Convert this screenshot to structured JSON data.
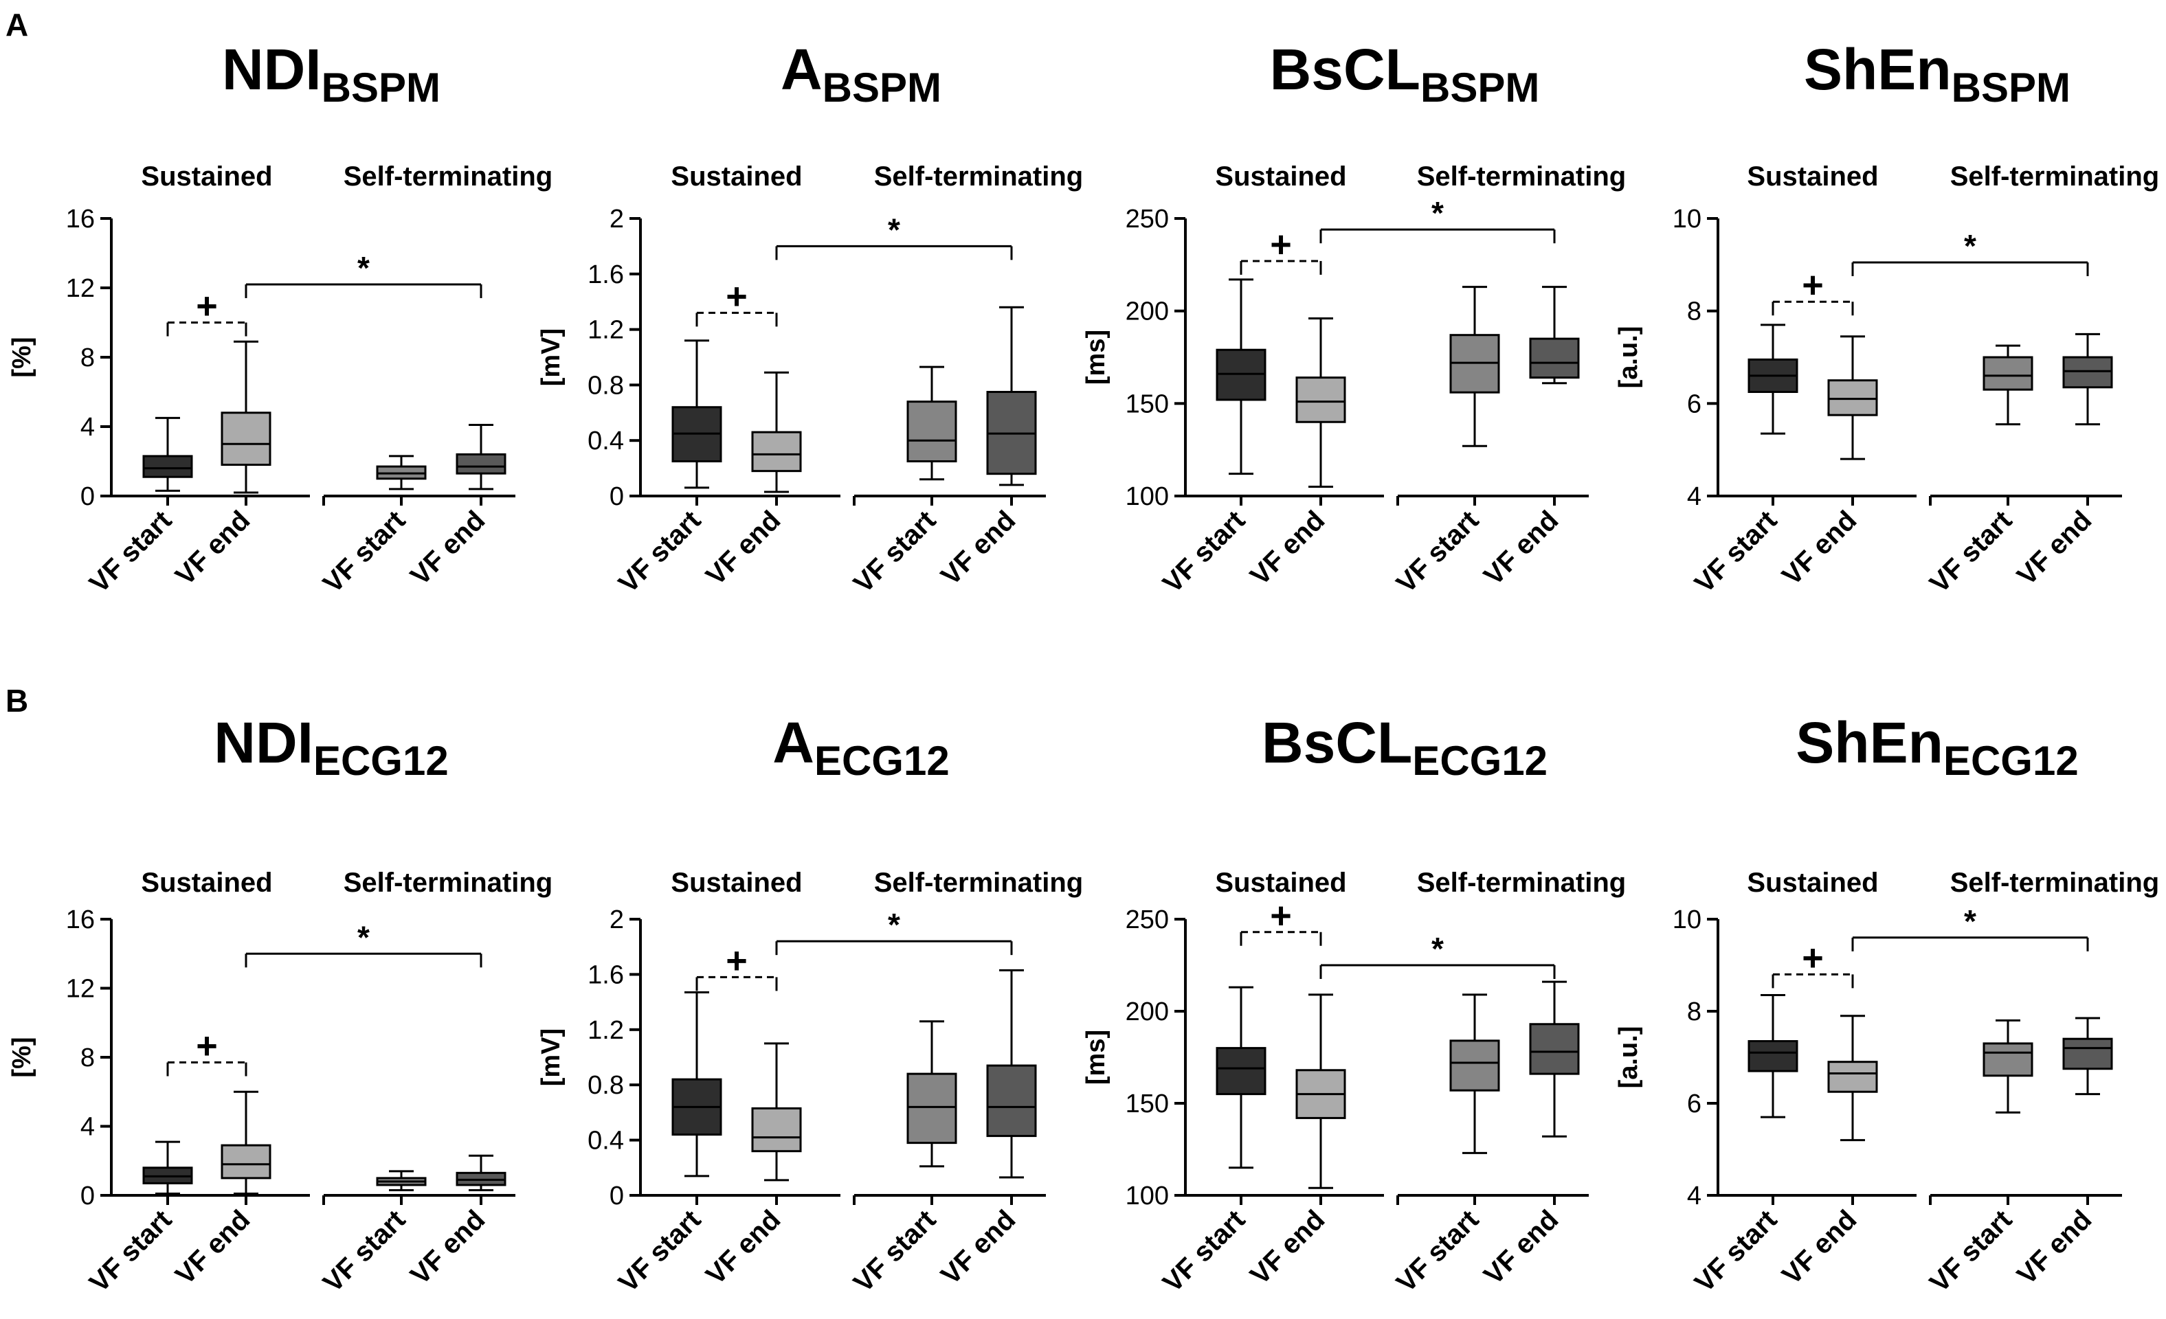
{
  "figure": {
    "panel_labels": [
      "A",
      "B"
    ]
  },
  "colors": {
    "sus_start": "#2e2e2e",
    "sus_end": "#ababab",
    "st_start": "#858585",
    "st_end": "#595959",
    "line": "#000000",
    "text": "#000000"
  },
  "chart_data": [
    {
      "type": "box",
      "panel": "A",
      "title_main": "NDI",
      "title_sub": "BSPM",
      "ylabel": "[%]",
      "ylim": [
        0,
        16
      ],
      "yticks": [
        "0",
        "4",
        "8",
        "12",
        "16"
      ],
      "groups": [
        "Sustained",
        "Self-terminating"
      ],
      "categories": [
        "VF start",
        "VF end",
        "VF start",
        "VF end"
      ],
      "boxes": [
        {
          "group": "Sustained",
          "name": "VF start",
          "min": 0.3,
          "q1": 1.1,
          "median": 1.6,
          "q3": 2.3,
          "max": 4.5
        },
        {
          "group": "Sustained",
          "name": "VF end",
          "min": 0.2,
          "q1": 1.8,
          "median": 3.0,
          "q3": 4.8,
          "max": 8.9
        },
        {
          "group": "Self-terminating",
          "name": "VF start",
          "min": 0.4,
          "q1": 1.0,
          "median": 1.3,
          "q3": 1.7,
          "max": 2.3
        },
        {
          "group": "Self-terminating",
          "name": "VF end",
          "min": 0.4,
          "q1": 1.3,
          "median": 1.7,
          "q3": 2.4,
          "max": 4.1
        }
      ],
      "plus_marker": {
        "symbol": "+",
        "from": 0,
        "to": 1,
        "y": 10.0
      },
      "star_marker": {
        "symbol": "*",
        "from": 1,
        "to": 3,
        "y": 12.2
      }
    },
    {
      "type": "box",
      "panel": "A",
      "title_main": "A",
      "title_sub": "BSPM",
      "ylabel": "[mV]",
      "ylim": [
        0,
        2
      ],
      "yticks": [
        "0",
        "0.4",
        "0.8",
        "1.2",
        "1.6",
        "2"
      ],
      "groups": [
        "Sustained",
        "Self-terminating"
      ],
      "categories": [
        "VF start",
        "VF end",
        "VF start",
        "VF end"
      ],
      "boxes": [
        {
          "group": "Sustained",
          "name": "VF start",
          "min": 0.06,
          "q1": 0.25,
          "median": 0.45,
          "q3": 0.64,
          "max": 1.12
        },
        {
          "group": "Sustained",
          "name": "VF end",
          "min": 0.03,
          "q1": 0.18,
          "median": 0.3,
          "q3": 0.46,
          "max": 0.89
        },
        {
          "group": "Self-terminating",
          "name": "VF start",
          "min": 0.12,
          "q1": 0.25,
          "median": 0.4,
          "q3": 0.68,
          "max": 0.93
        },
        {
          "group": "Self-terminating",
          "name": "VF end",
          "min": 0.08,
          "q1": 0.16,
          "median": 0.45,
          "q3": 0.75,
          "max": 1.36
        }
      ],
      "plus_marker": {
        "symbol": "+",
        "from": 0,
        "to": 1,
        "y": 1.32
      },
      "star_marker": {
        "symbol": "*",
        "from": 1,
        "to": 3,
        "y": 1.8
      }
    },
    {
      "type": "box",
      "panel": "A",
      "title_main": "BsCL",
      "title_sub": "BSPM",
      "ylabel": "[ms]",
      "ylim": [
        100,
        250
      ],
      "yticks": [
        "100",
        "150",
        "200",
        "250"
      ],
      "groups": [
        "Sustained",
        "Self-terminating"
      ],
      "categories": [
        "VF start",
        "VF end",
        "VF start",
        "VF end"
      ],
      "boxes": [
        {
          "group": "Sustained",
          "name": "VF start",
          "min": 112,
          "q1": 152,
          "median": 166,
          "q3": 179,
          "max": 217
        },
        {
          "group": "Sustained",
          "name": "VF end",
          "min": 105,
          "q1": 140,
          "median": 151,
          "q3": 164,
          "max": 196
        },
        {
          "group": "Self-terminating",
          "name": "VF start",
          "min": 127,
          "q1": 156,
          "median": 172,
          "q3": 187,
          "max": 213
        },
        {
          "group": "Self-terminating",
          "name": "VF end",
          "min": 161,
          "q1": 164,
          "median": 172,
          "q3": 185,
          "max": 213
        }
      ],
      "plus_marker": {
        "symbol": "+",
        "from": 0,
        "to": 1,
        "y": 227
      },
      "star_marker": {
        "symbol": "*",
        "from": 1,
        "to": 3,
        "y": 244
      }
    },
    {
      "type": "box",
      "panel": "A",
      "title_main": "ShEn",
      "title_sub": "BSPM",
      "ylabel": "[a.u.]",
      "ylim": [
        4,
        10
      ],
      "yticks": [
        "4",
        "6",
        "8",
        "10"
      ],
      "groups": [
        "Sustained",
        "Self-terminating"
      ],
      "categories": [
        "VF start",
        "VF end",
        "VF start",
        "VF end"
      ],
      "boxes": [
        {
          "group": "Sustained",
          "name": "VF start",
          "min": 5.35,
          "q1": 6.25,
          "median": 6.6,
          "q3": 6.95,
          "max": 7.7
        },
        {
          "group": "Sustained",
          "name": "VF end",
          "min": 4.8,
          "q1": 5.75,
          "median": 6.1,
          "q3": 6.5,
          "max": 7.45
        },
        {
          "group": "Self-terminating",
          "name": "VF start",
          "min": 5.55,
          "q1": 6.3,
          "median": 6.6,
          "q3": 7.0,
          "max": 7.25
        },
        {
          "group": "Self-terminating",
          "name": "VF end",
          "min": 5.55,
          "q1": 6.35,
          "median": 6.7,
          "q3": 7.0,
          "max": 7.5
        }
      ],
      "plus_marker": {
        "symbol": "+",
        "from": 0,
        "to": 1,
        "y": 8.2
      },
      "star_marker": {
        "symbol": "*",
        "from": 1,
        "to": 3,
        "y": 9.05
      }
    },
    {
      "type": "box",
      "panel": "B",
      "title_main": "NDI",
      "title_sub": "ECG12",
      "ylabel": "[%]",
      "ylim": [
        0,
        16
      ],
      "yticks": [
        "0",
        "4",
        "8",
        "12",
        "16"
      ],
      "groups": [
        "Sustained",
        "Self-terminating"
      ],
      "categories": [
        "VF start",
        "VF end",
        "VF start",
        "VF end"
      ],
      "boxes": [
        {
          "group": "Sustained",
          "name": "VF start",
          "min": 0.1,
          "q1": 0.7,
          "median": 1.1,
          "q3": 1.6,
          "max": 3.1
        },
        {
          "group": "Sustained",
          "name": "VF end",
          "min": 0.1,
          "q1": 1.0,
          "median": 1.8,
          "q3": 2.9,
          "max": 6.0
        },
        {
          "group": "Self-terminating",
          "name": "VF start",
          "min": 0.3,
          "q1": 0.6,
          "median": 0.8,
          "q3": 1.0,
          "max": 1.4
        },
        {
          "group": "Self-terminating",
          "name": "VF end",
          "min": 0.3,
          "q1": 0.6,
          "median": 0.9,
          "q3": 1.3,
          "max": 2.3
        }
      ],
      "plus_marker": {
        "symbol": "+",
        "from": 0,
        "to": 1,
        "y": 7.7
      },
      "star_marker": {
        "symbol": "*",
        "from": 1,
        "to": 3,
        "y": 14.0
      }
    },
    {
      "type": "box",
      "panel": "B",
      "title_main": "A",
      "title_sub": "ECG12",
      "ylabel": "[mV]",
      "ylim": [
        0,
        2
      ],
      "yticks": [
        "0",
        "0.4",
        "0.8",
        "1.2",
        "1.6",
        "2"
      ],
      "groups": [
        "Sustained",
        "Self-terminating"
      ],
      "categories": [
        "VF start",
        "VF end",
        "VF start",
        "VF end"
      ],
      "boxes": [
        {
          "group": "Sustained",
          "name": "VF start",
          "min": 0.14,
          "q1": 0.44,
          "median": 0.64,
          "q3": 0.84,
          "max": 1.47
        },
        {
          "group": "Sustained",
          "name": "VF end",
          "min": 0.11,
          "q1": 0.32,
          "median": 0.42,
          "q3": 0.63,
          "max": 1.1
        },
        {
          "group": "Self-terminating",
          "name": "VF start",
          "min": 0.21,
          "q1": 0.38,
          "median": 0.64,
          "q3": 0.88,
          "max": 1.26
        },
        {
          "group": "Self-terminating",
          "name": "VF end",
          "min": 0.13,
          "q1": 0.43,
          "median": 0.64,
          "q3": 0.94,
          "max": 1.63
        }
      ],
      "plus_marker": {
        "symbol": "+",
        "from": 0,
        "to": 1,
        "y": 1.58
      },
      "star_marker": {
        "symbol": "*",
        "from": 1,
        "to": 3,
        "y": 1.84
      }
    },
    {
      "type": "box",
      "panel": "B",
      "title_main": "BsCL",
      "title_sub": "ECG12",
      "ylabel": "[ms]",
      "ylim": [
        100,
        250
      ],
      "yticks": [
        "100",
        "150",
        "200",
        "250"
      ],
      "groups": [
        "Sustained",
        "Self-terminating"
      ],
      "categories": [
        "VF start",
        "VF end",
        "VF start",
        "VF end"
      ],
      "boxes": [
        {
          "group": "Sustained",
          "name": "VF start",
          "min": 115,
          "q1": 155,
          "median": 169,
          "q3": 180,
          "max": 213
        },
        {
          "group": "Sustained",
          "name": "VF end",
          "min": 104,
          "q1": 142,
          "median": 155,
          "q3": 168,
          "max": 209
        },
        {
          "group": "Self-terminating",
          "name": "VF start",
          "min": 123,
          "q1": 157,
          "median": 172,
          "q3": 184,
          "max": 209
        },
        {
          "group": "Self-terminating",
          "name": "VF end",
          "min": 132,
          "q1": 166,
          "median": 178,
          "q3": 193,
          "max": 216
        }
      ],
      "plus_marker": {
        "symbol": "+",
        "from": 0,
        "to": 1,
        "y": 243
      },
      "star_marker": {
        "symbol": "*",
        "from": 1,
        "to": 3,
        "y": 225
      }
    },
    {
      "type": "box",
      "panel": "B",
      "title_main": "ShEn",
      "title_sub": "ECG12",
      "ylabel": "[a.u.]",
      "ylim": [
        4,
        10
      ],
      "yticks": [
        "4",
        "6",
        "8",
        "10"
      ],
      "groups": [
        "Sustained",
        "Self-terminating"
      ],
      "categories": [
        "VF start",
        "VF end",
        "VF start",
        "VF end"
      ],
      "boxes": [
        {
          "group": "Sustained",
          "name": "VF start",
          "min": 5.7,
          "q1": 6.7,
          "median": 7.1,
          "q3": 7.35,
          "max": 8.35
        },
        {
          "group": "Sustained",
          "name": "VF end",
          "min": 5.2,
          "q1": 6.25,
          "median": 6.65,
          "q3": 6.9,
          "max": 7.9
        },
        {
          "group": "Self-terminating",
          "name": "VF start",
          "min": 5.8,
          "q1": 6.6,
          "median": 7.1,
          "q3": 7.3,
          "max": 7.8
        },
        {
          "group": "Self-terminating",
          "name": "VF end",
          "min": 6.2,
          "q1": 6.75,
          "median": 7.2,
          "q3": 7.4,
          "max": 7.85
        }
      ],
      "plus_marker": {
        "symbol": "+",
        "from": 0,
        "to": 1,
        "y": 8.8
      },
      "star_marker": {
        "symbol": "*",
        "from": 1,
        "to": 3,
        "y": 9.6
      }
    }
  ]
}
